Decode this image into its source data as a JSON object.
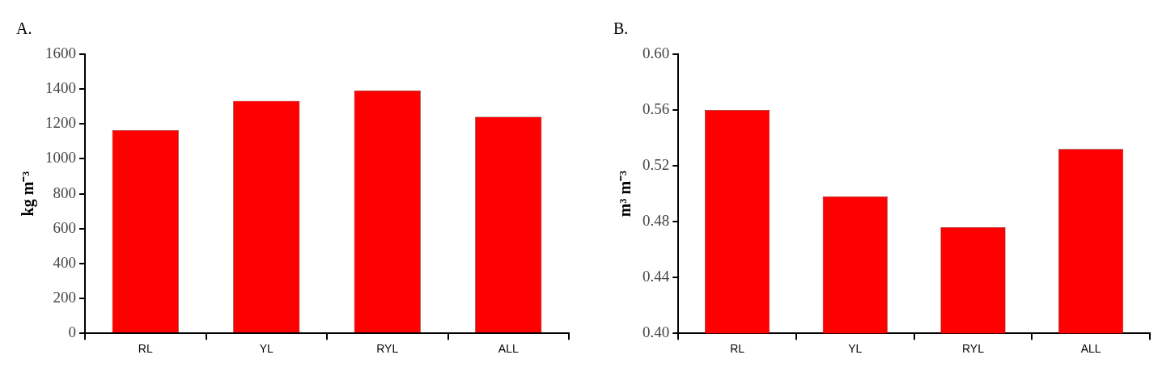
{
  "chart_data": [
    {
      "type": "bar",
      "title": "A.",
      "ylabel": "kg m⁻³",
      "categories": [
        "RL",
        "YL",
        "RYL",
        "ALL"
      ],
      "values": [
        1164,
        1332,
        1392,
        1241
      ],
      "color": "#ff0000",
      "ylim": [
        0,
        1600
      ],
      "yticks": [
        0,
        200,
        400,
        600,
        800,
        1000,
        1200,
        1400,
        1600
      ],
      "grid": false,
      "legend": false
    },
    {
      "type": "bar",
      "title": "B.",
      "ylabel": "m³ m⁻³",
      "categories": [
        "RL",
        "YL",
        "RYL",
        "ALL"
      ],
      "values": [
        0.56,
        0.498,
        0.476,
        0.532
      ],
      "color": "#ff0000",
      "ylim": [
        0.4,
        0.6
      ],
      "yticks": [
        {
          "value": 0.4,
          "label": "0.40"
        },
        {
          "value": 0.44,
          "label": "0.44"
        },
        {
          "value": 0.48,
          "label": "0.48"
        },
        {
          "value": 0.52,
          "label": "0.52"
        },
        {
          "value": 0.56,
          "label": "0.56"
        },
        {
          "value": 0.6,
          "label": "0.60"
        }
      ],
      "grid": false,
      "legend": false
    }
  ]
}
